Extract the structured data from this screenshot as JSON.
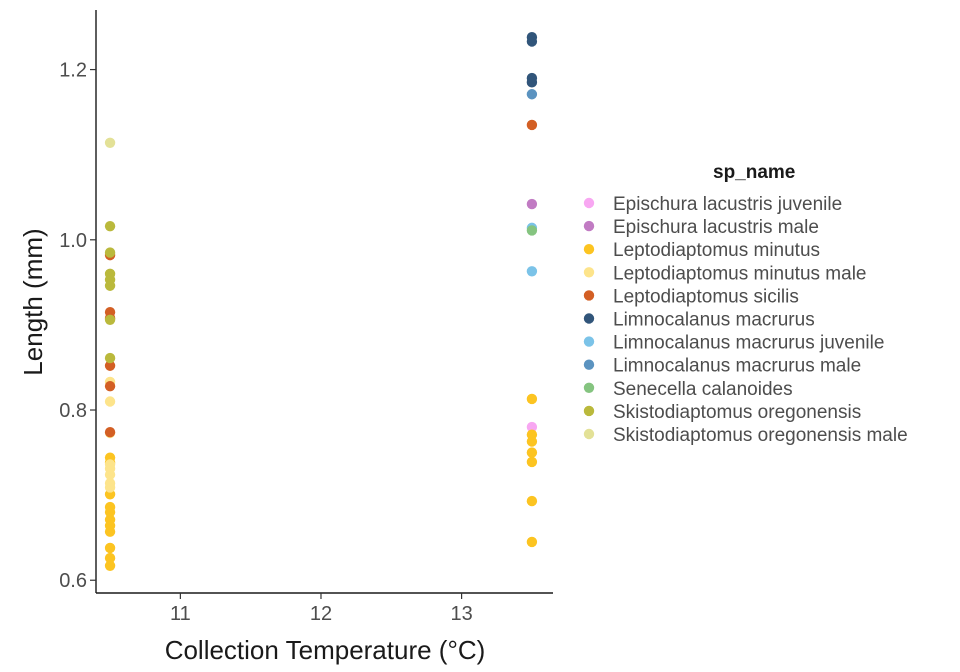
{
  "chart_data": {
    "type": "scatter",
    "xlabel": "Collection Temperature (°C)",
    "ylabel": "Length (mm)",
    "xlim": [
      10.4,
      13.65
    ],
    "ylim": [
      0.585,
      1.27
    ],
    "xticks": [
      11,
      12,
      13
    ],
    "yticks": [
      0.6,
      0.8,
      1.0,
      1.2
    ],
    "xtick_labels": [
      "11",
      "12",
      "13"
    ],
    "ytick_labels": [
      "0.6",
      "0.8",
      "1.0",
      "1.2"
    ],
    "grid": false,
    "legend_title": "sp_name",
    "legend_position": "right",
    "series": [
      {
        "name": "Epischura lacustris juvenile",
        "color": "#F8A7F2",
        "points": [
          [
            13.5,
            0.78
          ]
        ]
      },
      {
        "name": "Epischura lacustris male",
        "color": "#C17BC3",
        "points": [
          [
            13.5,
            1.042
          ]
        ]
      },
      {
        "name": "Leptodiaptomus minutus",
        "color": "#FCC421",
        "points": [
          [
            10.5,
            0.617
          ],
          [
            10.5,
            0.626
          ],
          [
            10.5,
            0.638
          ],
          [
            10.5,
            0.657
          ],
          [
            10.5,
            0.664
          ],
          [
            10.5,
            0.671
          ],
          [
            10.5,
            0.68
          ],
          [
            10.5,
            0.686
          ],
          [
            10.5,
            0.701
          ],
          [
            10.5,
            0.738
          ],
          [
            10.5,
            0.744
          ],
          [
            13.5,
            0.645
          ],
          [
            13.5,
            0.693
          ],
          [
            13.5,
            0.739
          ],
          [
            13.5,
            0.75
          ],
          [
            13.5,
            0.763
          ],
          [
            13.5,
            0.771
          ],
          [
            13.5,
            0.813
          ]
        ]
      },
      {
        "name": "Leptodiaptomus minutus male",
        "color": "#FDE48B",
        "points": [
          [
            10.5,
            0.709
          ],
          [
            10.5,
            0.714
          ],
          [
            10.5,
            0.724
          ],
          [
            10.5,
            0.731
          ],
          [
            10.5,
            0.736
          ],
          [
            10.5,
            0.773
          ],
          [
            10.5,
            0.81
          ],
          [
            10.5,
            0.833
          ]
        ]
      },
      {
        "name": "Leptodiaptomus sicilis",
        "color": "#D35F24",
        "points": [
          [
            10.5,
            0.774
          ],
          [
            10.5,
            0.828
          ],
          [
            10.5,
            0.852
          ],
          [
            10.5,
            0.908
          ],
          [
            10.5,
            0.915
          ],
          [
            10.5,
            0.982
          ],
          [
            13.5,
            1.135
          ]
        ]
      },
      {
        "name": "Limnocalanus macrurus",
        "color": "#31557A",
        "points": [
          [
            13.5,
            1.185
          ],
          [
            13.5,
            1.19
          ],
          [
            13.5,
            1.233
          ],
          [
            13.5,
            1.238
          ]
        ]
      },
      {
        "name": "Limnocalanus macrurus juvenile",
        "color": "#7BC3E8",
        "points": [
          [
            13.5,
            0.963
          ],
          [
            13.5,
            1.014
          ]
        ]
      },
      {
        "name": "Limnocalanus macrurus male",
        "color": "#5B93C0",
        "points": [
          [
            13.5,
            1.171
          ]
        ]
      },
      {
        "name": "Senecella calanoides",
        "color": "#85C480",
        "points": [
          [
            13.5,
            1.011
          ]
        ]
      },
      {
        "name": "Skistodiaptomus oregonensis",
        "color": "#BAB93C",
        "points": [
          [
            10.5,
            0.861
          ],
          [
            10.5,
            0.906
          ],
          [
            10.5,
            0.946
          ],
          [
            10.5,
            0.953
          ],
          [
            10.5,
            0.96
          ],
          [
            10.5,
            0.985
          ],
          [
            10.5,
            1.016
          ]
        ]
      },
      {
        "name": "Skistodiaptomus oregonensis male",
        "color": "#E3E197",
        "points": [
          [
            10.5,
            1.114
          ]
        ]
      }
    ]
  }
}
